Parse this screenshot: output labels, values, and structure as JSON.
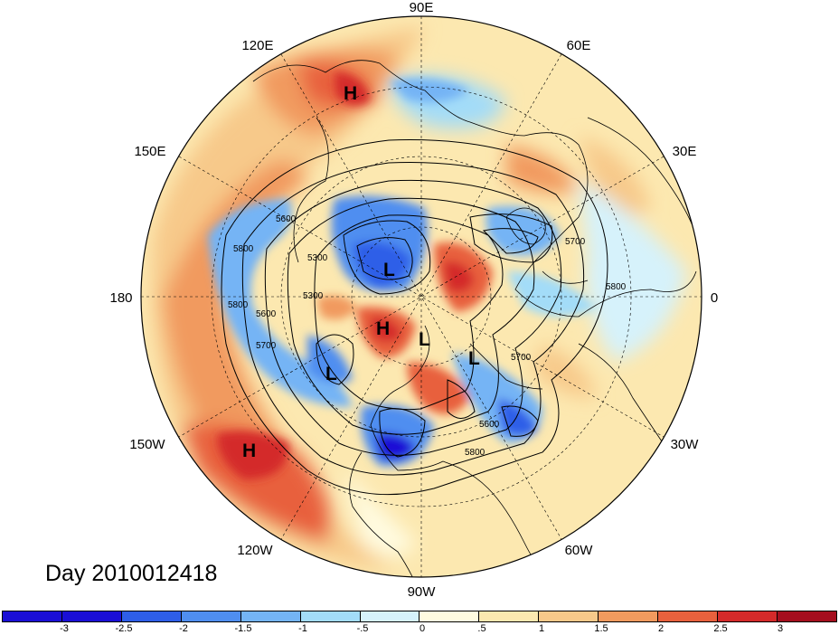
{
  "title": "Day 2010012418",
  "longitude_labels": [
    "90E",
    "60E",
    "30E",
    "0",
    "30W",
    "60W",
    "90W",
    "120W",
    "150W",
    "180",
    "150E",
    "120E"
  ],
  "contour_labels": [
    "5600",
    "5800",
    "5300",
    "5300",
    "5800",
    "5600",
    "5700",
    "5700",
    "5700",
    "5800",
    "5600",
    "5800"
  ],
  "pressure_centers": [
    "H",
    "L",
    "H",
    "L",
    "L",
    "L",
    "H"
  ],
  "colorbar": {
    "ticks": [
      "-3",
      "-2.5",
      "-2",
      "-1.5",
      "-1",
      "-.5",
      "0",
      ".5",
      "1",
      "1.5",
      "2",
      "2.5",
      "3"
    ],
    "colors": [
      "#1a0fd6",
      "#2e5ee8",
      "#4f8ef0",
      "#74b4f5",
      "#a3dcf8",
      "#d6f2fb",
      "#fffbe0",
      "#fce8b0",
      "#f7c98a",
      "#f19a5e",
      "#e8613d",
      "#d42a2a",
      "#a50e1e"
    ]
  }
}
